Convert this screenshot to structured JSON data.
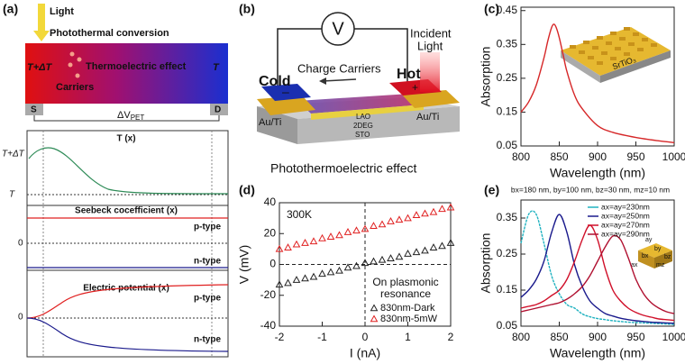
{
  "panel_a": {
    "label": "(a)",
    "light": "Light",
    "conversion": "Photothermal conversion",
    "hot": "T+ΔT",
    "cold": "T",
    "effect": "Thermoelectric effect",
    "carriers": "Carriers",
    "source": "S",
    "drain": "D",
    "voltage": "ΔV",
    "voltage_sub": "PET",
    "temp": {
      "title": "T (x)",
      "hot_tick": "T+ΔT",
      "cold_tick": "T"
    },
    "seebeck": {
      "title": "Seebeck cocefficient (x)",
      "zero": "0",
      "p": "p-type",
      "n": "n-type"
    },
    "potential": {
      "title": "Electric potential (x)",
      "zero": "0",
      "p": "p-type",
      "n": "n-type"
    }
  },
  "panel_b": {
    "label": "(b)",
    "meter": "V",
    "incident": "Incident",
    "light": "Light",
    "cold": "Cold",
    "hot": "Hot",
    "carriers": "Charge Carriers",
    "minus": "–",
    "plus": "+",
    "left_contact": "Au/Ti",
    "right_contact": "Au/Ti",
    "lao": "LAO",
    "deg": "2DEG",
    "sto": "STO",
    "caption": "Photothermoelectric effect"
  },
  "chart_data": [
    {
      "type": "line",
      "label": "(c)",
      "inset": "SrTiO₃",
      "xlabel": "Wavelength (nm)",
      "ylabel": "Absorption",
      "x": [
        800,
        810,
        820,
        830,
        835,
        840,
        843,
        846,
        850,
        855,
        860,
        870,
        880,
        900,
        920,
        950,
        980,
        1000
      ],
      "values": [
        0.15,
        0.18,
        0.23,
        0.31,
        0.36,
        0.4,
        0.41,
        0.4,
        0.37,
        0.32,
        0.27,
        0.2,
        0.16,
        0.11,
        0.09,
        0.075,
        0.065,
        0.06
      ],
      "color": "#d62728",
      "xlim": [
        800,
        1000
      ],
      "xticks": [
        800,
        850,
        900,
        950,
        1000
      ],
      "ylim": [
        0.05,
        0.46
      ],
      "yticks": [
        0.05,
        0.15,
        0.25,
        0.35,
        0.45
      ]
    },
    {
      "type": "scatter",
      "label": "(d)",
      "xlabel": "I (nA)",
      "ylabel": "V (mV)",
      "annotations": [
        "300K",
        "On plasmonic",
        "resonance"
      ],
      "x": [
        -2,
        -1.8,
        -1.6,
        -1.4,
        -1.2,
        -1,
        -0.8,
        -0.6,
        -0.4,
        -0.2,
        0,
        0.2,
        0.4,
        0.6,
        0.8,
        1,
        1.2,
        1.4,
        1.6,
        1.8,
        2
      ],
      "series": [
        {
          "name": "830nm-Dark",
          "color": "#222222",
          "values": [
            -13,
            -12,
            -10,
            -9,
            -8,
            -6,
            -5,
            -4,
            -2,
            -1,
            1,
            2,
            3,
            4,
            5,
            7,
            8,
            9,
            11,
            12,
            14
          ]
        },
        {
          "name": "830nm-5mW",
          "color": "#e02020",
          "values": [
            10,
            11,
            13,
            14,
            15,
            17,
            18,
            19,
            21,
            22,
            23,
            25,
            26,
            28,
            29,
            30,
            32,
            33,
            34,
            36,
            37
          ]
        }
      ],
      "xlim": [
        -2,
        2
      ],
      "xticks": [
        -2,
        -1,
        0,
        1,
        2
      ],
      "ylim": [
        -40,
        40
      ],
      "yticks": [
        -40,
        -20,
        0,
        20,
        40
      ]
    },
    {
      "type": "line",
      "label": "(e)",
      "subtitle": "bx=180 nm, by=100 nm, bz=30 nm, mz=10 nm",
      "xlabel": "Wavelength (nm)",
      "ylabel": "Absorption",
      "inset": [
        "ay",
        "by",
        "bx",
        "ax",
        "bz",
        "mz"
      ],
      "x": [
        800,
        810,
        820,
        830,
        840,
        850,
        860,
        870,
        880,
        890,
        900,
        910,
        920,
        930,
        940,
        950,
        960,
        970,
        980,
        990,
        1000
      ],
      "series": [
        {
          "name": "ax=ay=230nm",
          "color": "#20b2c0",
          "values": [
            0.28,
            0.36,
            0.36,
            0.28,
            0.19,
            0.14,
            0.11,
            0.1,
            0.084,
            0.076,
            0.071,
            0.068,
            0.065,
            0.063,
            0.061,
            0.06,
            0.059,
            0.058,
            0.057,
            0.056,
            0.055
          ]
        },
        {
          "name": "ax=ay=250nm",
          "color": "#1a1a8c",
          "values": [
            0.13,
            0.15,
            0.18,
            0.23,
            0.31,
            0.36,
            0.31,
            0.22,
            0.16,
            0.12,
            0.1,
            0.085,
            0.078,
            0.072,
            0.068,
            0.065,
            0.063,
            0.061,
            0.06,
            0.059,
            0.058
          ]
        },
        {
          "name": "ax=ay=270nm",
          "color": "#d0102a",
          "values": [
            0.1,
            0.105,
            0.11,
            0.12,
            0.135,
            0.15,
            0.18,
            0.23,
            0.29,
            0.33,
            0.29,
            0.21,
            0.15,
            0.12,
            0.1,
            0.088,
            0.08,
            0.075,
            0.07,
            0.068,
            0.066
          ]
        },
        {
          "name": "ax=ay=290nm",
          "color": "#b01030",
          "values": [
            0.09,
            0.095,
            0.1,
            0.105,
            0.11,
            0.115,
            0.125,
            0.14,
            0.16,
            0.19,
            0.23,
            0.27,
            0.3,
            0.29,
            0.24,
            0.18,
            0.14,
            0.115,
            0.1,
            0.09,
            0.085
          ]
        }
      ],
      "xlim": [
        800,
        1000
      ],
      "xticks": [
        800,
        850,
        900,
        950,
        1000
      ],
      "ylim": [
        0.05,
        0.4
      ],
      "yticks": [
        0.05,
        0.15,
        0.25,
        0.35
      ]
    }
  ]
}
